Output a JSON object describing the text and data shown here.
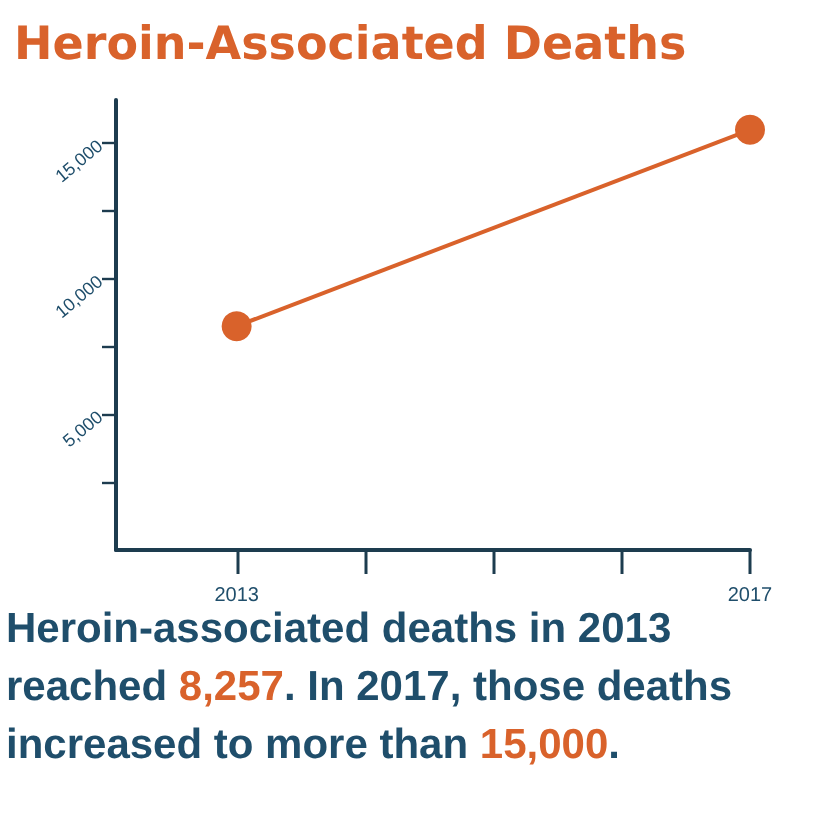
{
  "chart_data": {
    "type": "line",
    "title": "Heroin-Associated Deaths",
    "x": [
      2013,
      2017
    ],
    "series": [
      {
        "color": "#d9622b",
        "values": [
          8257,
          15500
        ]
      }
    ],
    "xlim": [
      2012.06,
      2017
    ],
    "xticks": [
      2013,
      {
        "value": 2014,
        "label": null
      },
      {
        "value": 2015,
        "label": null
      },
      {
        "value": 2016,
        "label": null
      },
      2017
    ],
    "ylim": [
      0,
      16600
    ],
    "yticks": [
      {
        "value": 2500,
        "label": null
      },
      {
        "value": 5000,
        "label": "5,000"
      },
      {
        "value": 7500,
        "label": null
      },
      {
        "value": 10000,
        "label": "10,000"
      },
      {
        "value": 12500,
        "label": null
      },
      {
        "value": 15000,
        "label": "15,000"
      }
    ],
    "marker": "circle",
    "line_style": "solid",
    "grid": false,
    "annotations": [
      "Heroin-associated deaths in 2013 reached 8,257. In 2017, those deaths increased to more than 15,000."
    ]
  }
}
